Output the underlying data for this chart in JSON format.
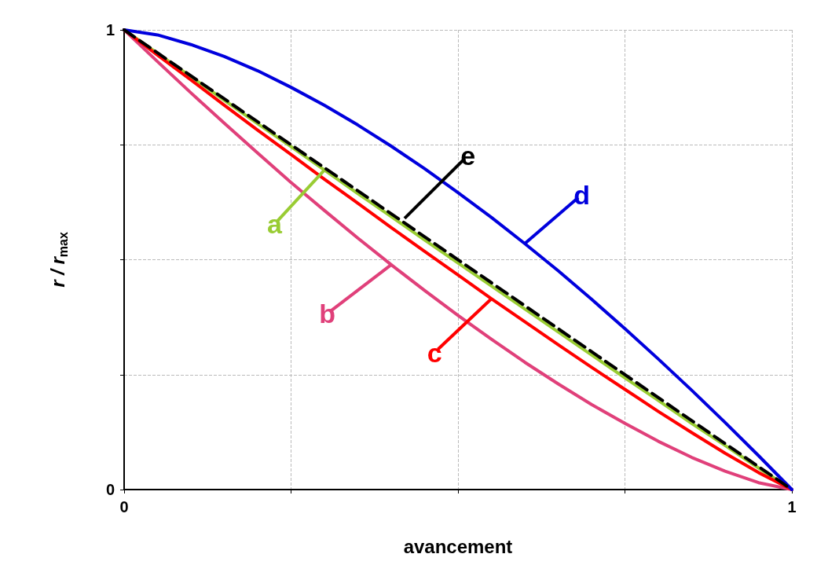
{
  "chart_data": {
    "type": "line",
    "xlabel": "avancement",
    "ylabel": "r / r$_{max}$",
    "xlim": [
      0,
      1
    ],
    "ylim": [
      0,
      1
    ],
    "xticks": [
      0,
      {
        "value": 0.25,
        "label": null
      },
      {
        "value": 0.5,
        "label": null
      },
      {
        "value": 0.75,
        "label": null
      },
      1
    ],
    "yticks": [
      0,
      {
        "value": 0.25,
        "label": null
      },
      {
        "value": 0.5,
        "label": null
      },
      {
        "value": 0.75,
        "label": null
      },
      1
    ],
    "grid": true,
    "legend": false,
    "marker": "none",
    "x": [
      0,
      0.05,
      0.1,
      0.15,
      0.2,
      0.25,
      0.3,
      0.35,
      0.4,
      0.45,
      0.5,
      0.55,
      0.6,
      0.65,
      0.7,
      0.75,
      0.8,
      0.85,
      0.9,
      0.95,
      1
    ],
    "series": [
      {
        "name": "a",
        "color": "#99cc33",
        "line_style": "solid",
        "values": [
          1,
          0.949,
          0.898,
          0.847,
          0.796,
          0.746,
          0.695,
          0.644,
          0.594,
          0.543,
          0.493,
          0.443,
          0.393,
          0.343,
          0.293,
          0.243,
          0.194,
          0.144,
          0.096,
          0.047,
          0
        ]
      },
      {
        "name": "b",
        "color": "#e0407a",
        "line_style": "solid",
        "values": [
          1,
          0.931,
          0.863,
          0.797,
          0.732,
          0.668,
          0.607,
          0.547,
          0.489,
          0.433,
          0.379,
          0.327,
          0.277,
          0.23,
          0.185,
          0.144,
          0.105,
          0.07,
          0.04,
          0.015,
          0
        ]
      },
      {
        "name": "c",
        "color": "#ff0000",
        "line_style": "solid",
        "values": [
          1,
          0.945,
          0.891,
          0.836,
          0.782,
          0.729,
          0.675,
          0.623,
          0.57,
          0.518,
          0.467,
          0.415,
          0.365,
          0.315,
          0.266,
          0.218,
          0.17,
          0.124,
          0.079,
          0.037,
          0
        ]
      },
      {
        "name": "d",
        "color": "#0000dd",
        "line_style": "solid",
        "values": [
          1,
          0.989,
          0.968,
          0.942,
          0.911,
          0.875,
          0.836,
          0.793,
          0.747,
          0.698,
          0.646,
          0.592,
          0.535,
          0.476,
          0.414,
          0.35,
          0.284,
          0.216,
          0.146,
          0.074,
          0
        ]
      },
      {
        "name": "e",
        "color": "#000000",
        "line_style": "dashed",
        "x": [
          0,
          1
        ],
        "values": [
          1,
          0
        ]
      }
    ]
  }
}
